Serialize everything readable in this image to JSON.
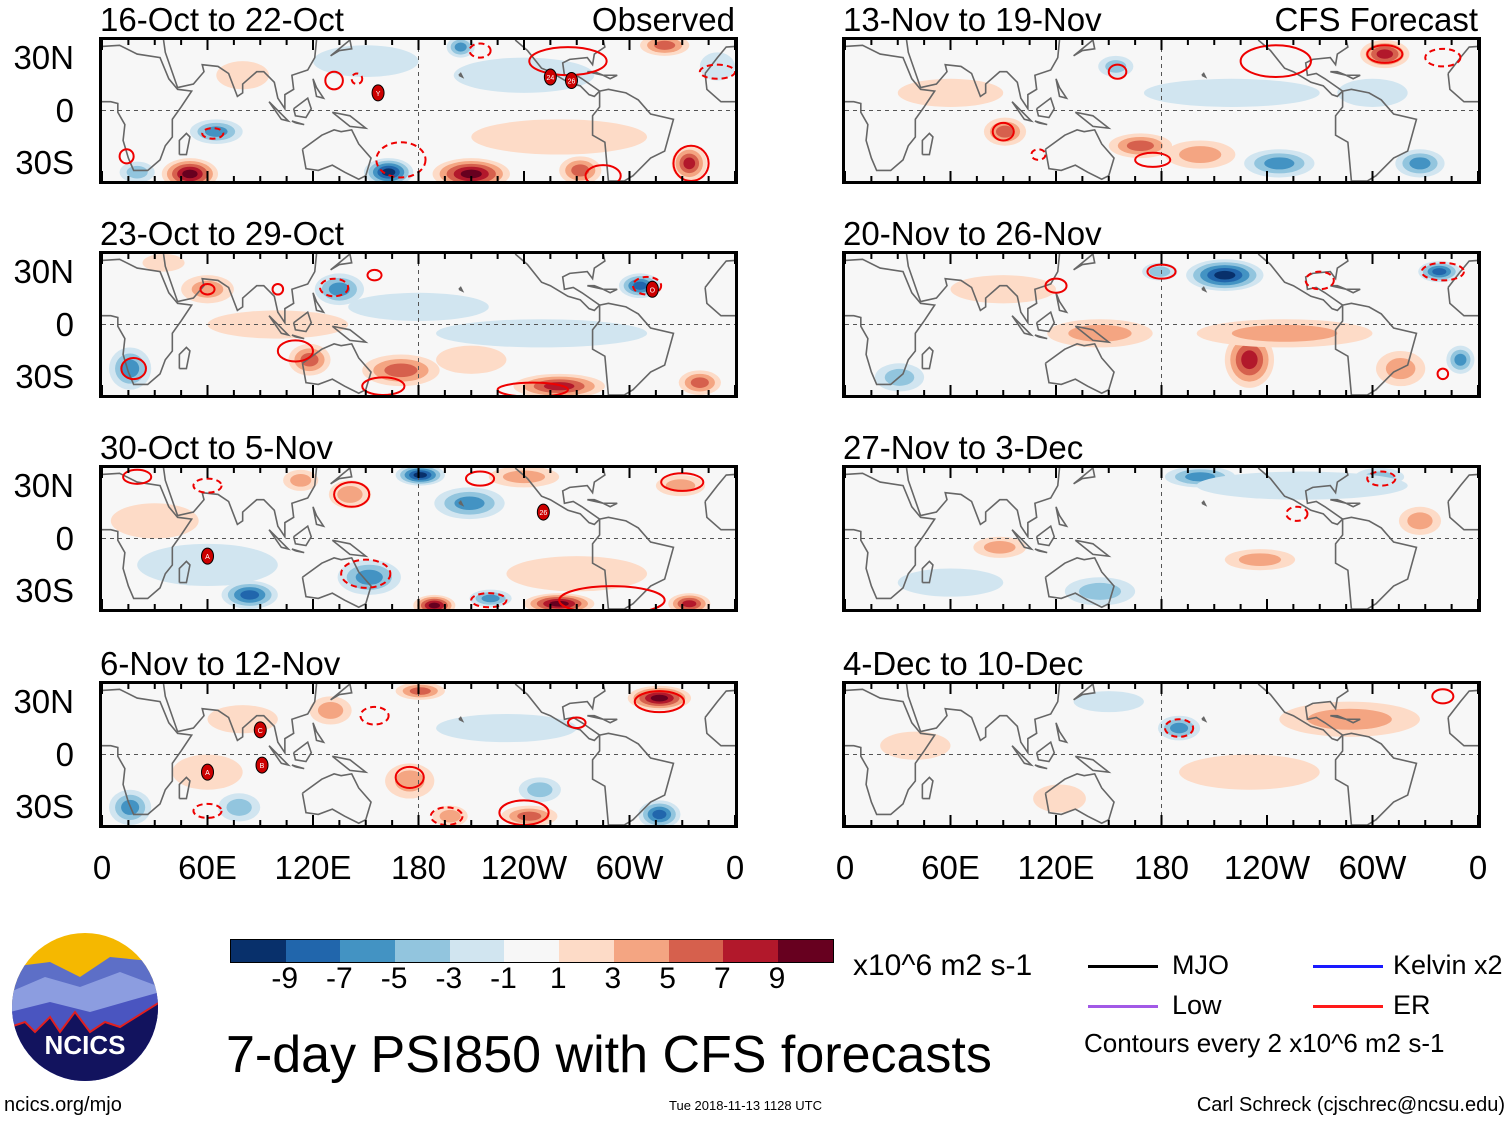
{
  "labels": {
    "observed": "Observed",
    "forecast": "CFS Forecast",
    "lat": [
      "30N",
      "0",
      "30S"
    ],
    "lon": [
      "0",
      "60E",
      "120E",
      "180",
      "120W",
      "60W",
      "0"
    ]
  },
  "panels": [
    {
      "title": "16-Oct to 22-Oct",
      "blobs": [
        [
          50,
          -36,
          16,
          9,
          10
        ],
        [
          210,
          -36,
          22,
          9,
          9
        ],
        [
          163,
          -35,
          14,
          8,
          -10
        ],
        [
          272,
          -34,
          12,
          8,
          5
        ],
        [
          334,
          -30,
          10,
          10,
          7
        ],
        [
          320,
          37,
          14,
          6,
          6
        ],
        [
          204,
          36,
          8,
          6,
          -5
        ],
        [
          65,
          -12,
          15,
          7,
          -5
        ],
        [
          150,
          28,
          30,
          9,
          -2
        ],
        [
          240,
          20,
          40,
          10,
          -2
        ],
        [
          80,
          20,
          15,
          8,
          2
        ],
        [
          260,
          -15,
          50,
          10,
          1
        ],
        [
          20,
          -35,
          10,
          6,
          -3
        ],
        [
          350,
          25,
          10,
          8,
          -2
        ]
      ],
      "contours": [
        [
          63,
          -13,
          6,
          3,
          1
        ],
        [
          14,
          -26,
          4,
          4,
          0
        ],
        [
          132,
          17,
          5,
          5,
          0
        ],
        [
          145,
          18,
          3,
          3,
          1
        ],
        [
          215,
          34,
          6,
          4,
          1
        ],
        [
          265,
          28,
          22,
          8,
          0
        ],
        [
          170,
          -28,
          14,
          10,
          1
        ],
        [
          335,
          -30,
          10,
          10,
          0
        ],
        [
          285,
          -37,
          10,
          6,
          0
        ],
        [
          350,
          22,
          10,
          4,
          1
        ]
      ],
      "storms": [
        [
          157,
          10,
          "Y"
        ],
        [
          255,
          19,
          "24"
        ],
        [
          267,
          17,
          "26"
        ]
      ]
    },
    {
      "title": "23-Oct to 29-Oct",
      "blobs": [
        [
          135,
          20,
          14,
          9,
          -6
        ],
        [
          306,
          22,
          12,
          7,
          -7
        ],
        [
          16,
          -25,
          12,
          12,
          -6
        ],
        [
          118,
          -20,
          12,
          9,
          5
        ],
        [
          170,
          -26,
          22,
          9,
          6
        ],
        [
          260,
          -35,
          26,
          7,
          8
        ],
        [
          340,
          -33,
          12,
          7,
          5
        ],
        [
          60,
          20,
          15,
          8,
          3
        ],
        [
          180,
          10,
          40,
          8,
          -2
        ],
        [
          250,
          -5,
          60,
          8,
          -1
        ],
        [
          100,
          0,
          40,
          8,
          2
        ],
        [
          210,
          -20,
          20,
          8,
          2
        ],
        [
          35,
          35,
          12,
          5,
          2
        ]
      ],
      "contours": [
        [
          132,
          21,
          8,
          5,
          1
        ],
        [
          110,
          -15,
          10,
          6,
          0
        ],
        [
          160,
          -35,
          12,
          5,
          0
        ],
        [
          245,
          -37,
          20,
          4,
          0
        ],
        [
          60,
          20,
          4,
          3,
          0
        ],
        [
          155,
          28,
          4,
          3,
          0
        ],
        [
          310,
          22,
          8,
          5,
          1
        ],
        [
          18,
          -25,
          7,
          6,
          0
        ],
        [
          100,
          20,
          3,
          3,
          0
        ]
      ],
      "storms": [
        [
          313,
          20,
          "O"
        ]
      ]
    },
    {
      "title": "30-Oct to 5-Nov",
      "blobs": [
        [
          181,
          36,
          14,
          6,
          -9
        ],
        [
          209,
          20,
          20,
          9,
          -5
        ],
        [
          141,
          25,
          12,
          8,
          4
        ],
        [
          113,
          33,
          10,
          6,
          3
        ],
        [
          84,
          -32,
          16,
          8,
          -8
        ],
        [
          152,
          -22,
          18,
          10,
          -6
        ],
        [
          189,
          -38,
          12,
          6,
          9
        ],
        [
          260,
          -37,
          20,
          6,
          9
        ],
        [
          334,
          -37,
          12,
          6,
          8
        ],
        [
          221,
          -34,
          12,
          5,
          -5
        ],
        [
          329,
          30,
          14,
          6,
          3
        ],
        [
          30,
          10,
          25,
          10,
          2
        ],
        [
          60,
          -15,
          40,
          12,
          -2
        ],
        [
          270,
          -20,
          40,
          10,
          2
        ],
        [
          240,
          35,
          20,
          6,
          3
        ]
      ],
      "contours": [
        [
          142,
          25,
          10,
          7,
          0
        ],
        [
          215,
          34,
          8,
          4,
          0
        ],
        [
          330,
          32,
          12,
          5,
          0
        ],
        [
          150,
          -20,
          14,
          8,
          1
        ],
        [
          220,
          -35,
          10,
          4,
          1
        ],
        [
          290,
          -35,
          30,
          8,
          0
        ],
        [
          20,
          35,
          8,
          4,
          0
        ],
        [
          60,
          30,
          8,
          4,
          1
        ]
      ],
      "storms": [
        [
          60,
          -10,
          "A"
        ],
        [
          251,
          15,
          "26"
        ]
      ]
    },
    {
      "title": "6-Nov to 12-Nov",
      "blobs": [
        [
          181,
          36,
          14,
          5,
          6
        ],
        [
          317,
          32,
          18,
          7,
          9
        ],
        [
          130,
          25,
          12,
          8,
          4
        ],
        [
          16,
          -30,
          12,
          10,
          -5
        ],
        [
          78,
          -30,
          12,
          8,
          -4
        ],
        [
          175,
          -15,
          14,
          10,
          3
        ],
        [
          243,
          -35,
          16,
          6,
          6
        ],
        [
          317,
          -34,
          12,
          8,
          -8
        ],
        [
          249,
          -20,
          12,
          7,
          -4
        ],
        [
          198,
          -35,
          10,
          6,
          4
        ],
        [
          80,
          20,
          20,
          8,
          2
        ],
        [
          230,
          15,
          40,
          8,
          -2
        ],
        [
          60,
          -10,
          20,
          10,
          2
        ]
      ],
      "contours": [
        [
          175,
          -13,
          8,
          6,
          0
        ],
        [
          240,
          -33,
          14,
          7,
          0
        ],
        [
          196,
          -35,
          9,
          5,
          1
        ],
        [
          317,
          30,
          14,
          6,
          0
        ],
        [
          155,
          22,
          8,
          5,
          1
        ],
        [
          270,
          18,
          5,
          3,
          0
        ],
        [
          60,
          -32,
          8,
          4,
          1
        ]
      ],
      "storms": [
        [
          90,
          14,
          "C"
        ],
        [
          60,
          -10,
          "A"
        ],
        [
          91,
          -6,
          "B"
        ]
      ]
    },
    {
      "title": "13-Nov to 19-Nov",
      "blobs": [
        [
          307,
          32,
          14,
          8,
          7
        ],
        [
          91,
          -12,
          12,
          8,
          5
        ],
        [
          168,
          -20,
          18,
          7,
          5
        ],
        [
          247,
          -30,
          20,
          8,
          -5
        ],
        [
          327,
          -30,
          14,
          8,
          -5
        ],
        [
          202,
          -25,
          20,
          8,
          3
        ],
        [
          154,
          25,
          10,
          6,
          -3
        ],
        [
          220,
          10,
          50,
          8,
          -2
        ],
        [
          60,
          10,
          30,
          8,
          2
        ],
        [
          300,
          10,
          20,
          8,
          -2
        ]
      ],
      "contours": [
        [
          307,
          32,
          10,
          5,
          0
        ],
        [
          90,
          -12,
          6,
          5,
          0
        ],
        [
          155,
          22,
          5,
          4,
          0
        ],
        [
          245,
          28,
          20,
          9,
          0
        ],
        [
          340,
          30,
          10,
          5,
          1
        ],
        [
          175,
          -28,
          10,
          4,
          0
        ],
        [
          110,
          -25,
          4,
          3,
          1
        ]
      ],
      "storms": []
    },
    {
      "title": "20-Nov to 26-Nov",
      "blobs": [
        [
          216,
          28,
          22,
          9,
          -9
        ],
        [
          338,
          30,
          12,
          6,
          -8
        ],
        [
          179,
          30,
          10,
          5,
          -4
        ],
        [
          230,
          -20,
          14,
          16,
          7
        ],
        [
          145,
          -5,
          30,
          8,
          4
        ],
        [
          316,
          -25,
          14,
          10,
          3
        ],
        [
          350,
          -20,
          8,
          8,
          -5
        ],
        [
          31,
          -30,
          14,
          8,
          -3
        ],
        [
          250,
          -5,
          50,
          8,
          3
        ],
        [
          90,
          20,
          30,
          8,
          2
        ]
      ],
      "contours": [
        [
          180,
          30,
          8,
          4,
          0
        ],
        [
          340,
          30,
          12,
          5,
          1
        ],
        [
          270,
          25,
          8,
          5,
          1
        ],
        [
          120,
          22,
          6,
          4,
          0
        ],
        [
          340,
          -28,
          3,
          3,
          0
        ]
      ],
      "storms": []
    },
    {
      "title": "27-Nov to 3-Dec",
      "blobs": [
        [
          202,
          35,
          20,
          6,
          -5
        ],
        [
          304,
          35,
          14,
          5,
          -4
        ],
        [
          236,
          -12,
          20,
          6,
          4
        ],
        [
          88,
          -5,
          15,
          6,
          3
        ],
        [
          327,
          10,
          12,
          8,
          3
        ],
        [
          145,
          -30,
          20,
          8,
          -3
        ],
        [
          260,
          30,
          60,
          8,
          -2
        ],
        [
          60,
          -25,
          30,
          8,
          -2
        ]
      ],
      "contours": [
        [
          305,
          34,
          8,
          4,
          1
        ],
        [
          257,
          14,
          6,
          4,
          1
        ]
      ],
      "storms": []
    },
    {
      "title": "4-Dec to 10-Dec",
      "blobs": [
        [
          190,
          15,
          12,
          7,
          -5
        ],
        [
          287,
          20,
          40,
          10,
          3
        ],
        [
          230,
          -10,
          40,
          10,
          2
        ],
        [
          122,
          -25,
          15,
          8,
          2
        ],
        [
          40,
          5,
          20,
          8,
          2
        ],
        [
          150,
          30,
          20,
          6,
          -2
        ]
      ],
      "contours": [
        [
          190,
          15,
          8,
          5,
          1
        ],
        [
          340,
          33,
          6,
          4,
          0
        ]
      ],
      "storms": []
    }
  ],
  "colorbar": {
    "colors": [
      "#08306b",
      "#2166ac",
      "#4393c3",
      "#92c5de",
      "#d1e5f0",
      "#f7f7f7",
      "#fddbc7",
      "#f4a582",
      "#d6604d",
      "#b2182b",
      "#67001f"
    ],
    "labels": [
      "-9",
      "-7",
      "-5",
      "-3",
      "-1",
      "1",
      "3",
      "5",
      "7",
      "9"
    ],
    "units": "x10^6 m2 s-1"
  },
  "legend": {
    "mjo": "MJO",
    "kelvin": "Kelvin x2",
    "low": "Low",
    "er": "ER",
    "contours": "Contours every 2 x10^6 m2 s-1",
    "colors": {
      "mjo": "#000000",
      "kelvin": "#1a1aff",
      "low": "#a259e6",
      "er": "#ff1a1a"
    }
  },
  "title": "7-day PSI850 with CFS forecasts",
  "logo": "NCICS",
  "footer": {
    "url": "ncics.org/mjo",
    "timestamp": "Tue 2018-11-13 1128 UTC",
    "author": "Carl Schreck (cjschrec@ncsu.edu)"
  }
}
